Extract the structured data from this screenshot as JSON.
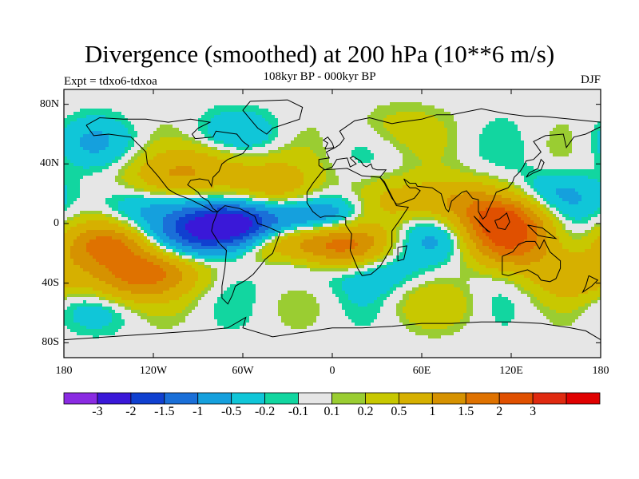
{
  "title": "Divergence (smoothed) at 200 hPa (10**6 m/s)",
  "subtitle": "108kyr BP - 000kyr BP",
  "experiment": "Expt = tdxo6-tdxoa",
  "season": "DJF",
  "axes": {
    "lat_ticks": [
      {
        "label": "80N",
        "value": 80
      },
      {
        "label": "40N",
        "value": 40
      },
      {
        "label": "0",
        "value": 0
      },
      {
        "label": "40S",
        "value": -40
      },
      {
        "label": "80S",
        "value": -80
      }
    ],
    "lon_ticks": [
      {
        "label": "180",
        "value": -180
      },
      {
        "label": "120W",
        "value": -120
      },
      {
        "label": "60W",
        "value": -60
      },
      {
        "label": "0",
        "value": 0
      },
      {
        "label": "60E",
        "value": 60
      },
      {
        "label": "120E",
        "value": 120
      },
      {
        "label": "180",
        "value": 180
      }
    ],
    "lat_range": [
      -90,
      90
    ],
    "lon_range": [
      -180,
      180
    ]
  },
  "colorbar": {
    "colors": [
      "#8a2be2",
      "#3a18d8",
      "#1040d0",
      "#1a6fd8",
      "#15a0dd",
      "#10c6d8",
      "#12d6a0",
      "#e6e6e6",
      "#9acd32",
      "#c8c800",
      "#d6b000",
      "#d69200",
      "#df7200",
      "#e05000",
      "#e02a10",
      "#e00000"
    ],
    "labels": [
      "-3",
      "-2",
      "-1.5",
      "-1",
      "-0.5",
      "-0.2",
      "-0.1",
      "0.1",
      "0.2",
      "0.5",
      "1",
      "1.5",
      "2",
      "3"
    ]
  },
  "field": {
    "background": "#e6e6e6",
    "anomalies": [
      {
        "lon": -150,
        "lat": -15,
        "value": 1.5
      },
      {
        "lon": -115,
        "lat": -30,
        "value": 1.2
      },
      {
        "lon": -140,
        "lat": -40,
        "value": 1.0
      },
      {
        "lon": -75,
        "lat": -2,
        "value": -2.5
      },
      {
        "lon": -50,
        "lat": 0,
        "value": -1.5
      },
      {
        "lon": -35,
        "lat": -10,
        "value": 1.6
      },
      {
        "lon": 5,
        "lat": -15,
        "value": 1.8
      },
      {
        "lon": -5,
        "lat": 5,
        "value": -1.2
      },
      {
        "lon": 115,
        "lat": 2,
        "value": 1.8
      },
      {
        "lon": 120,
        "lat": -15,
        "value": 1.4
      },
      {
        "lon": 85,
        "lat": 15,
        "value": 0.8
      },
      {
        "lon": 50,
        "lat": 15,
        "value": 0.6
      },
      {
        "lon": -110,
        "lat": 30,
        "value": 0.8
      },
      {
        "lon": -80,
        "lat": 40,
        "value": 0.6
      },
      {
        "lon": -30,
        "lat": 15,
        "value": 0.8
      },
      {
        "lon": -40,
        "lat": 30,
        "value": 0.5
      },
      {
        "lon": -140,
        "lat": 10,
        "value": -0.5
      },
      {
        "lon": -100,
        "lat": -15,
        "value": -0.6
      },
      {
        "lon": -20,
        "lat": -25,
        "value": -0.5
      },
      {
        "lon": 30,
        "lat": -30,
        "value": -0.5
      },
      {
        "lon": 75,
        "lat": -10,
        "value": -0.5
      },
      {
        "lon": 160,
        "lat": -35,
        "value": 0.8
      },
      {
        "lon": 150,
        "lat": 20,
        "value": -0.5
      },
      {
        "lon": -160,
        "lat": 55,
        "value": -0.4
      },
      {
        "lon": -60,
        "lat": 60,
        "value": -0.4
      },
      {
        "lon": 40,
        "lat": 65,
        "value": 0.3
      },
      {
        "lon": 70,
        "lat": -55,
        "value": 0.3
      },
      {
        "lon": -160,
        "lat": -55,
        "value": -0.3
      }
    ]
  }
}
